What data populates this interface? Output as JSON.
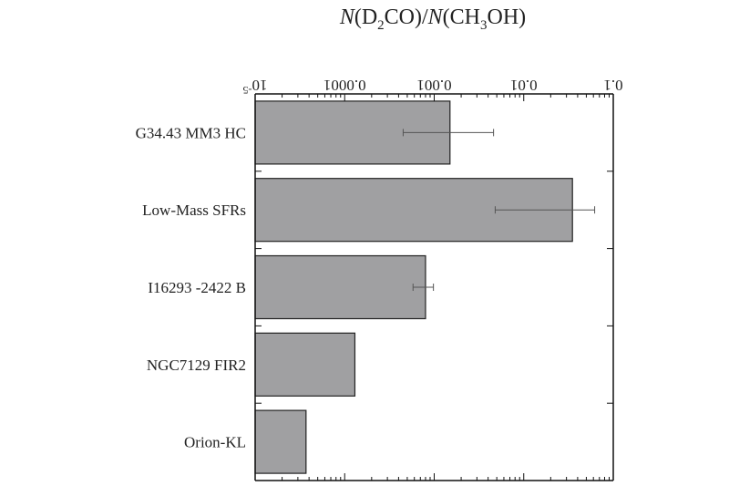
{
  "chart_data": {
    "type": "bar",
    "orientation": "horizontal",
    "title_parts": {
      "num_pre": "N",
      "num_mid": "(D",
      "num_sub": "2",
      "num_post": "CO)/",
      "den_pre": "N",
      "den_mid": "(CH",
      "den_sub": "3",
      "den_post": "OH)"
    },
    "categories": [
      "G34.43 MM3 HC",
      "Low-Mass SFRs",
      "I16293 -2422 B",
      "NGC7129 FIR2",
      "Orion-KL"
    ],
    "values": [
      0.0015,
      0.035,
      0.0008,
      0.00013,
      3.7e-05
    ],
    "error_low": [
      0.00045,
      0.0048,
      0.00058,
      null,
      null
    ],
    "error_high": [
      0.0046,
      0.062,
      0.00098,
      null,
      null
    ],
    "xscale": "log",
    "xlim": [
      1e-05,
      0.1
    ],
    "xticks": [
      {
        "base": "10",
        "exp": "-5"
      },
      {
        "text": "0.0001"
      },
      {
        "text": "0.001"
      },
      {
        "text": "0.01"
      },
      {
        "text": "0.1"
      }
    ],
    "tick_label_rotation": "180deg",
    "grid": false,
    "bar_color": "#a0a0a2",
    "edge_color": "#222222",
    "errorbar_color": "#555555"
  }
}
